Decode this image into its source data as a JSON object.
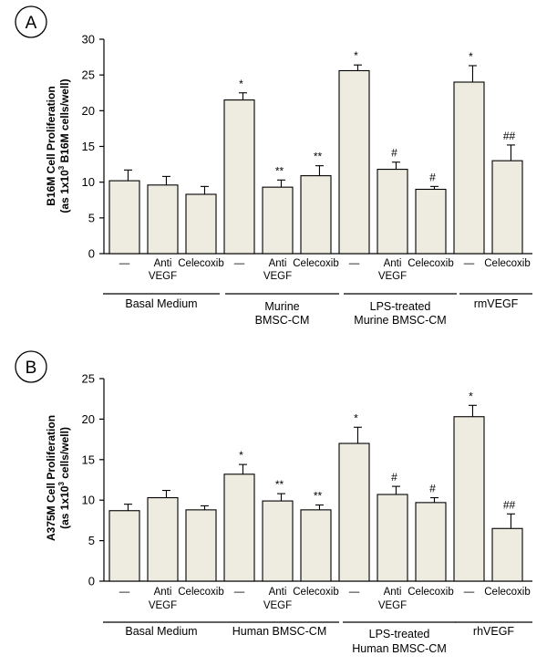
{
  "chart_data": [
    {
      "type": "bar",
      "panel_label": "A",
      "ylabel_line1": "B16M Cell Proliferation",
      "ylabel_line2_prefix": "(as 1x10",
      "ylabel_line2_exp": "3",
      "ylabel_line2_suffix": " B16M cells/well)",
      "ylim": [
        0,
        30
      ],
      "yticks": [
        "0",
        "5",
        "10",
        "15",
        "20",
        "25",
        "30"
      ],
      "categories": [
        {
          "label": [
            "—"
          ],
          "group": 0
        },
        {
          "label": [
            "Anti",
            "VEGF"
          ],
          "group": 0
        },
        {
          "label": [
            "Celecoxib"
          ],
          "group": 0
        },
        {
          "label": [
            "—"
          ],
          "group": 1
        },
        {
          "label": [
            "Anti",
            "VEGF"
          ],
          "group": 1
        },
        {
          "label": [
            "Celecoxib"
          ],
          "group": 1
        },
        {
          "label": [
            "—"
          ],
          "group": 2
        },
        {
          "label": [
            "Anti",
            "VEGF"
          ],
          "group": 2
        },
        {
          "label": [
            "Celecoxib"
          ],
          "group": 2
        },
        {
          "label": [
            "—"
          ],
          "group": 3
        },
        {
          "label": [
            "Celecoxib"
          ],
          "group": 3
        }
      ],
      "values": [
        10.2,
        9.6,
        8.3,
        21.5,
        9.3,
        10.9,
        25.6,
        11.8,
        9.0,
        24.0,
        13.0
      ],
      "errors": [
        1.5,
        1.2,
        1.1,
        1.0,
        1.0,
        1.4,
        0.8,
        1.0,
        0.4,
        2.3,
        2.2
      ],
      "annotations": [
        "",
        "",
        "",
        "*",
        "**",
        "**",
        "*",
        "#",
        "#",
        "*",
        "##"
      ],
      "groups": [
        {
          "label": [
            "Basal Medium"
          ]
        },
        {
          "label": [
            "Murine",
            "BMSC-CM"
          ]
        },
        {
          "label": [
            "LPS-treated",
            "Murine BMSC-CM"
          ]
        },
        {
          "label": [
            "rmVEGF"
          ]
        }
      ]
    },
    {
      "type": "bar",
      "panel_label": "B",
      "ylabel_line1": "A375M Cell Proliferation",
      "ylabel_line2_prefix": "(as 1x10",
      "ylabel_line2_exp": "3",
      "ylabel_line2_suffix": " cells/well)",
      "ylim": [
        0,
        25
      ],
      "yticks": [
        "0",
        "5",
        "10",
        "15",
        "20",
        "25"
      ],
      "categories": [
        {
          "label": [
            "—"
          ],
          "group": 0
        },
        {
          "label": [
            "Anti",
            "VEGF"
          ],
          "group": 0
        },
        {
          "label": [
            "Celecoxib"
          ],
          "group": 0
        },
        {
          "label": [
            "—"
          ],
          "group": 1
        },
        {
          "label": [
            "Anti",
            "VEGF"
          ],
          "group": 1
        },
        {
          "label": [
            "Celecoxib"
          ],
          "group": 1
        },
        {
          "label": [
            "—"
          ],
          "group": 2
        },
        {
          "label": [
            "Anti",
            "VEGF"
          ],
          "group": 2
        },
        {
          "label": [
            "Celecoxib"
          ],
          "group": 2
        },
        {
          "label": [
            "—"
          ],
          "group": 3
        },
        {
          "label": [
            "Celecoxib"
          ],
          "group": 3
        }
      ],
      "values": [
        8.7,
        10.3,
        8.8,
        13.2,
        9.9,
        8.8,
        17.0,
        10.7,
        9.7,
        20.3,
        6.5
      ],
      "errors": [
        0.8,
        0.9,
        0.5,
        1.2,
        0.9,
        0.6,
        2.0,
        1.0,
        0.6,
        1.4,
        1.8
      ],
      "annotations": [
        "",
        "",
        "",
        "*",
        "**",
        "**",
        "*",
        "#",
        "#",
        "*",
        "##"
      ],
      "groups": [
        {
          "label": [
            "Basal Medium"
          ]
        },
        {
          "label": [
            "Human BMSC-CM"
          ]
        },
        {
          "label": [
            "LPS-treated",
            "Human BMSC-CM"
          ]
        },
        {
          "label": [
            "rhVEGF"
          ]
        }
      ]
    }
  ]
}
